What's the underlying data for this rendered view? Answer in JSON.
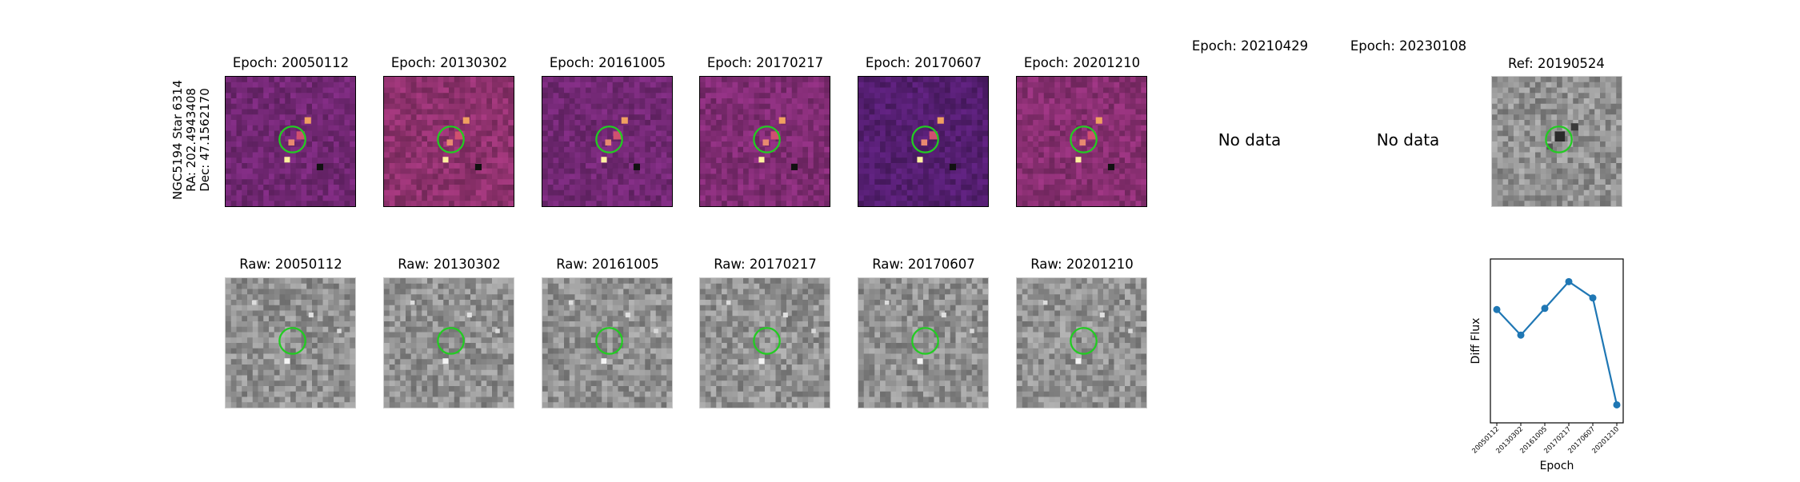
{
  "target": {
    "name": "NGC5194 Star 6314",
    "ra": "RA: 202.4943408",
    "dec": "Dec: 47.1562170"
  },
  "diff_panels": [
    {
      "title": "Epoch: 20050112",
      "bg": "#7a2a7c"
    },
    {
      "title": "Epoch: 20130302",
      "bg": "#9a3576"
    },
    {
      "title": "Epoch: 20161005",
      "bg": "#7b2b7d"
    },
    {
      "title": "Epoch: 20170217",
      "bg": "#8a2f7c"
    },
    {
      "title": "Epoch: 20170607",
      "bg": "#5a2078"
    },
    {
      "title": "Epoch: 20201210",
      "bg": "#93327a"
    }
  ],
  "empty_panels": [
    {
      "title": "Epoch: 20210429",
      "text": "No data"
    },
    {
      "title": "Epoch: 20230108",
      "text": "No data"
    }
  ],
  "reference": {
    "title": "Ref: 20190524"
  },
  "raw_panels": [
    {
      "title": "Raw: 20050112"
    },
    {
      "title": "Raw: 20130302"
    },
    {
      "title": "Raw: 20161005"
    },
    {
      "title": "Raw: 20170217"
    },
    {
      "title": "Raw: 20170607"
    },
    {
      "title": "Raw: 20201210"
    }
  ],
  "colors": {
    "circle": "#22cc22",
    "line": "#1f77b4"
  },
  "chart_data": {
    "type": "line",
    "categories": [
      "20050112",
      "20130302",
      "20161005",
      "20170217",
      "20170607",
      "20201210"
    ],
    "values": [
      0.62,
      0.4,
      0.63,
      0.86,
      0.72,
      -0.2
    ],
    "xlabel": "Epoch",
    "ylabel": "Diff Flux",
    "ylim": [
      -0.3,
      1.0
    ],
    "grid": false
  }
}
